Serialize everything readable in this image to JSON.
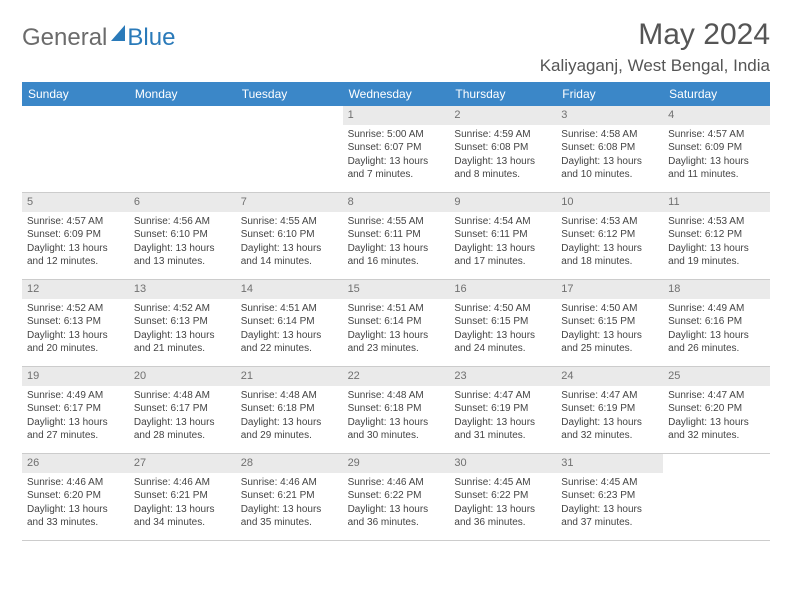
{
  "brand": {
    "part1": "General",
    "part2": "Blue",
    "color_gray": "#6b6b6b",
    "color_blue": "#2a7ab9"
  },
  "title": "May 2024",
  "location": "Kaliyaganj, West Bengal, India",
  "header_bg": "#3b87c8",
  "header_fg": "#ffffff",
  "daynum_bg": "#eaeaea",
  "border_color": "#cccccc",
  "text_color": "#444444",
  "font_family": "Arial",
  "day_fontsize": 12,
  "cell_fontsize": 10,
  "title_fontsize": 30,
  "location_fontsize": 17,
  "days": [
    "Sunday",
    "Monday",
    "Tuesday",
    "Wednesday",
    "Thursday",
    "Friday",
    "Saturday"
  ],
  "weeks": [
    [
      {
        "n": "",
        "sr": "",
        "ss": "",
        "dl": ""
      },
      {
        "n": "",
        "sr": "",
        "ss": "",
        "dl": ""
      },
      {
        "n": "",
        "sr": "",
        "ss": "",
        "dl": ""
      },
      {
        "n": "1",
        "sr": "Sunrise: 5:00 AM",
        "ss": "Sunset: 6:07 PM",
        "dl": "Daylight: 13 hours and 7 minutes."
      },
      {
        "n": "2",
        "sr": "Sunrise: 4:59 AM",
        "ss": "Sunset: 6:08 PM",
        "dl": "Daylight: 13 hours and 8 minutes."
      },
      {
        "n": "3",
        "sr": "Sunrise: 4:58 AM",
        "ss": "Sunset: 6:08 PM",
        "dl": "Daylight: 13 hours and 10 minutes."
      },
      {
        "n": "4",
        "sr": "Sunrise: 4:57 AM",
        "ss": "Sunset: 6:09 PM",
        "dl": "Daylight: 13 hours and 11 minutes."
      }
    ],
    [
      {
        "n": "5",
        "sr": "Sunrise: 4:57 AM",
        "ss": "Sunset: 6:09 PM",
        "dl": "Daylight: 13 hours and 12 minutes."
      },
      {
        "n": "6",
        "sr": "Sunrise: 4:56 AM",
        "ss": "Sunset: 6:10 PM",
        "dl": "Daylight: 13 hours and 13 minutes."
      },
      {
        "n": "7",
        "sr": "Sunrise: 4:55 AM",
        "ss": "Sunset: 6:10 PM",
        "dl": "Daylight: 13 hours and 14 minutes."
      },
      {
        "n": "8",
        "sr": "Sunrise: 4:55 AM",
        "ss": "Sunset: 6:11 PM",
        "dl": "Daylight: 13 hours and 16 minutes."
      },
      {
        "n": "9",
        "sr": "Sunrise: 4:54 AM",
        "ss": "Sunset: 6:11 PM",
        "dl": "Daylight: 13 hours and 17 minutes."
      },
      {
        "n": "10",
        "sr": "Sunrise: 4:53 AM",
        "ss": "Sunset: 6:12 PM",
        "dl": "Daylight: 13 hours and 18 minutes."
      },
      {
        "n": "11",
        "sr": "Sunrise: 4:53 AM",
        "ss": "Sunset: 6:12 PM",
        "dl": "Daylight: 13 hours and 19 minutes."
      }
    ],
    [
      {
        "n": "12",
        "sr": "Sunrise: 4:52 AM",
        "ss": "Sunset: 6:13 PM",
        "dl": "Daylight: 13 hours and 20 minutes."
      },
      {
        "n": "13",
        "sr": "Sunrise: 4:52 AM",
        "ss": "Sunset: 6:13 PM",
        "dl": "Daylight: 13 hours and 21 minutes."
      },
      {
        "n": "14",
        "sr": "Sunrise: 4:51 AM",
        "ss": "Sunset: 6:14 PM",
        "dl": "Daylight: 13 hours and 22 minutes."
      },
      {
        "n": "15",
        "sr": "Sunrise: 4:51 AM",
        "ss": "Sunset: 6:14 PM",
        "dl": "Daylight: 13 hours and 23 minutes."
      },
      {
        "n": "16",
        "sr": "Sunrise: 4:50 AM",
        "ss": "Sunset: 6:15 PM",
        "dl": "Daylight: 13 hours and 24 minutes."
      },
      {
        "n": "17",
        "sr": "Sunrise: 4:50 AM",
        "ss": "Sunset: 6:15 PM",
        "dl": "Daylight: 13 hours and 25 minutes."
      },
      {
        "n": "18",
        "sr": "Sunrise: 4:49 AM",
        "ss": "Sunset: 6:16 PM",
        "dl": "Daylight: 13 hours and 26 minutes."
      }
    ],
    [
      {
        "n": "19",
        "sr": "Sunrise: 4:49 AM",
        "ss": "Sunset: 6:17 PM",
        "dl": "Daylight: 13 hours and 27 minutes."
      },
      {
        "n": "20",
        "sr": "Sunrise: 4:48 AM",
        "ss": "Sunset: 6:17 PM",
        "dl": "Daylight: 13 hours and 28 minutes."
      },
      {
        "n": "21",
        "sr": "Sunrise: 4:48 AM",
        "ss": "Sunset: 6:18 PM",
        "dl": "Daylight: 13 hours and 29 minutes."
      },
      {
        "n": "22",
        "sr": "Sunrise: 4:48 AM",
        "ss": "Sunset: 6:18 PM",
        "dl": "Daylight: 13 hours and 30 minutes."
      },
      {
        "n": "23",
        "sr": "Sunrise: 4:47 AM",
        "ss": "Sunset: 6:19 PM",
        "dl": "Daylight: 13 hours and 31 minutes."
      },
      {
        "n": "24",
        "sr": "Sunrise: 4:47 AM",
        "ss": "Sunset: 6:19 PM",
        "dl": "Daylight: 13 hours and 32 minutes."
      },
      {
        "n": "25",
        "sr": "Sunrise: 4:47 AM",
        "ss": "Sunset: 6:20 PM",
        "dl": "Daylight: 13 hours and 32 minutes."
      }
    ],
    [
      {
        "n": "26",
        "sr": "Sunrise: 4:46 AM",
        "ss": "Sunset: 6:20 PM",
        "dl": "Daylight: 13 hours and 33 minutes."
      },
      {
        "n": "27",
        "sr": "Sunrise: 4:46 AM",
        "ss": "Sunset: 6:21 PM",
        "dl": "Daylight: 13 hours and 34 minutes."
      },
      {
        "n": "28",
        "sr": "Sunrise: 4:46 AM",
        "ss": "Sunset: 6:21 PM",
        "dl": "Daylight: 13 hours and 35 minutes."
      },
      {
        "n": "29",
        "sr": "Sunrise: 4:46 AM",
        "ss": "Sunset: 6:22 PM",
        "dl": "Daylight: 13 hours and 36 minutes."
      },
      {
        "n": "30",
        "sr": "Sunrise: 4:45 AM",
        "ss": "Sunset: 6:22 PM",
        "dl": "Daylight: 13 hours and 36 minutes."
      },
      {
        "n": "31",
        "sr": "Sunrise: 4:45 AM",
        "ss": "Sunset: 6:23 PM",
        "dl": "Daylight: 13 hours and 37 minutes."
      },
      {
        "n": "",
        "sr": "",
        "ss": "",
        "dl": ""
      }
    ]
  ]
}
